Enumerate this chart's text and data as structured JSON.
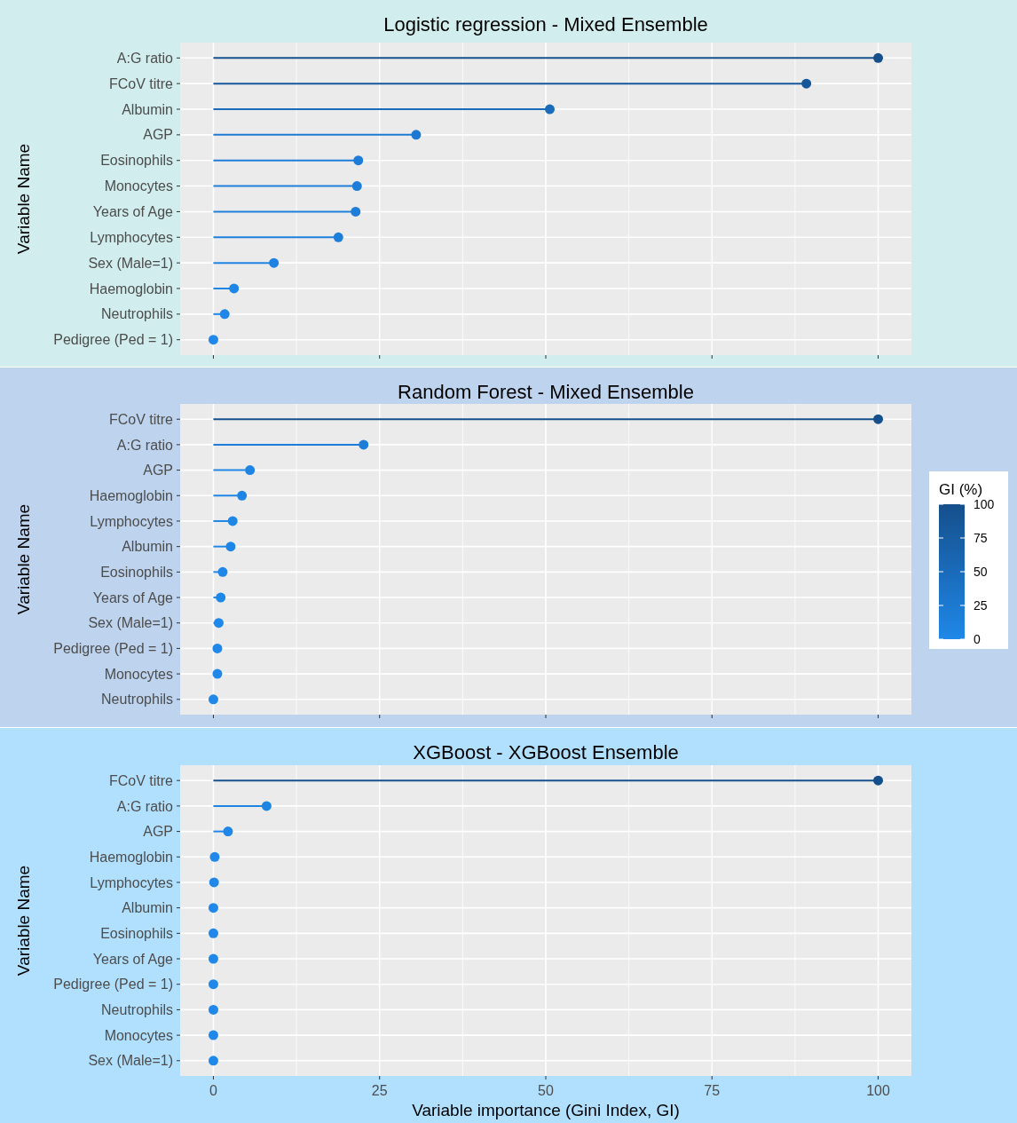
{
  "chart_data": [
    {
      "type": "lollipop",
      "title": "Logistic regression - Mixed Ensemble",
      "ylabel": "Variable Name",
      "orientation": "horizontal",
      "categories": [
        "A:G ratio",
        "FCoV titre",
        "Albumin",
        "AGP",
        "Eosinophils",
        "Monocytes",
        "Years of Age",
        "Lymphocytes",
        "Sex (Male=1)",
        "Haemoglobin",
        "Neutrophils",
        "Pedigree (Ped = 1)"
      ],
      "values": [
        100,
        89.2,
        50.6,
        30.5,
        21.8,
        21.6,
        21.4,
        18.8,
        9.1,
        3.1,
        1.7,
        0
      ],
      "colors": [
        "#154f8c",
        "#16569a",
        "#1a6cba",
        "#1c78d0",
        "#1d7dd8",
        "#1d7dd8",
        "#1d7dd8",
        "#1d7fdb",
        "#1e83e1",
        "#1e86e6",
        "#1f87e7",
        "#1f88e8"
      ],
      "xlim": [
        -5,
        105
      ],
      "xticks": [
        0,
        25,
        50,
        75,
        100
      ],
      "grid": true,
      "tick_labels": "y"
    },
    {
      "type": "lollipop",
      "title": "Random Forest - Mixed Ensemble",
      "ylabel": "Variable Name",
      "orientation": "horizontal",
      "categories": [
        "FCoV titre",
        "A:G ratio",
        "AGP",
        "Haemoglobin",
        "Lymphocytes",
        "Albumin",
        "Eosinophils",
        "Years of Age",
        "Sex (Male=1)",
        "Pedigree (Ped = 1)",
        "Monocytes",
        "Neutrophils"
      ],
      "values": [
        100,
        22.6,
        5.5,
        4.3,
        2.9,
        2.6,
        1.4,
        1.1,
        0.8,
        0.6,
        0.6,
        0
      ],
      "colors": [
        "#154f8c",
        "#1d7dd8",
        "#1e85e4",
        "#1e85e5",
        "#1e86e6",
        "#1e86e6",
        "#1f87e7",
        "#1f87e7",
        "#1f88e8",
        "#1f88e8",
        "#1f88e8",
        "#1f88e8"
      ],
      "xlim": [
        -5,
        105
      ],
      "xticks": [
        0,
        25,
        50,
        75,
        100
      ],
      "grid": true,
      "tick_labels": "y",
      "clabel": "GI (%)",
      "clim": [
        0,
        100
      ],
      "cticks": [
        0,
        25,
        50,
        75,
        100
      ]
    },
    {
      "type": "lollipop",
      "title": "XGBoost - XGBoost Ensemble",
      "ylabel": "Variable Name",
      "xlabel": "Variable importance (Gini Index, GI)",
      "orientation": "horizontal",
      "categories": [
        "FCoV titre",
        "A:G ratio",
        "AGP",
        "Haemoglobin",
        "Lymphocytes",
        "Albumin",
        "Eosinophils",
        "Years of Age",
        "Pedigree (Ped = 1)",
        "Neutrophils",
        "Monocytes",
        "Sex (Male=1)"
      ],
      "values": [
        100,
        8.0,
        2.2,
        0.2,
        0.1,
        0,
        0,
        0,
        0,
        0,
        0,
        0
      ],
      "colors": [
        "#154f8c",
        "#1e84e2",
        "#1f87e7",
        "#1f88e8",
        "#1f88e8",
        "#1f88e8",
        "#1f88e8",
        "#1f88e8",
        "#1f88e8",
        "#1f88e8",
        "#1f88e8",
        "#1f88e8"
      ],
      "xlim": [
        -5,
        105
      ],
      "xticks": [
        0,
        25,
        50,
        75,
        100
      ],
      "grid": true
    }
  ]
}
